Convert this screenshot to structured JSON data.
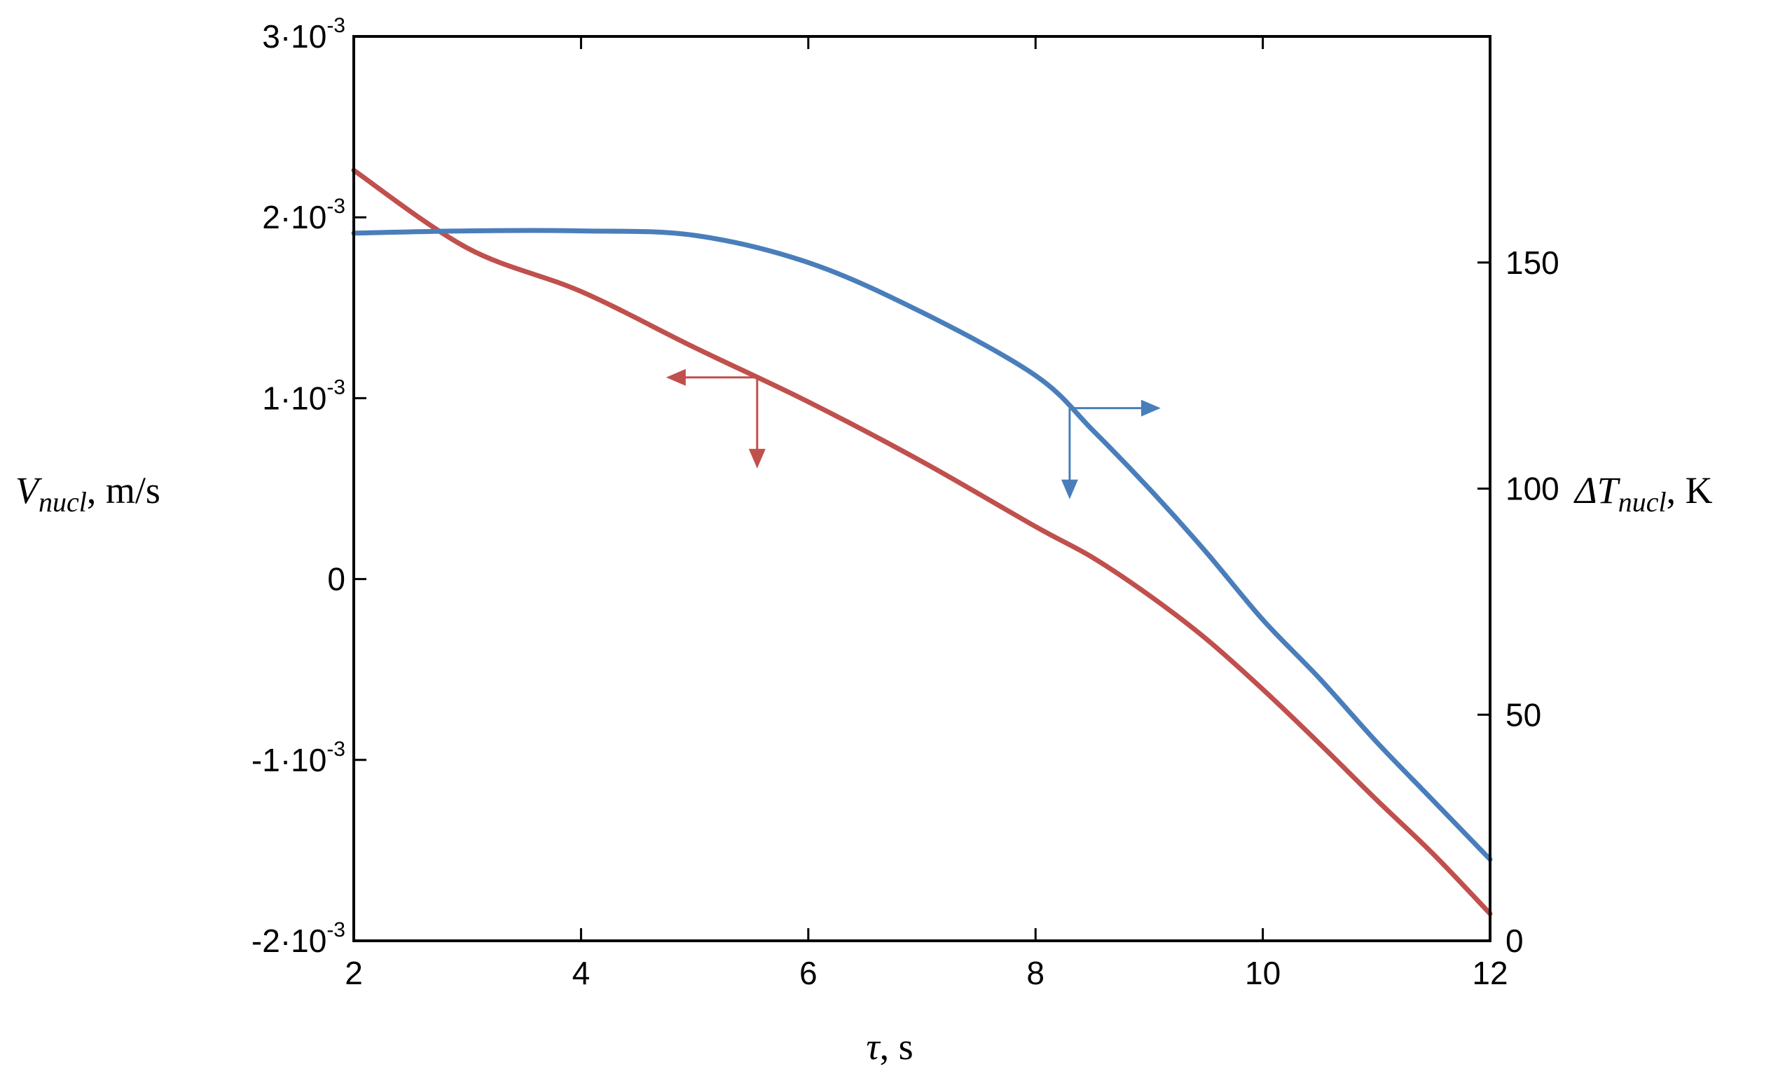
{
  "chart_data": {
    "type": "line",
    "xlabel": {
      "symbol": "τ",
      "unit": ", s"
    },
    "ylabel_left": {
      "symbol": "V",
      "subscript": "nucl",
      "unit": ", m/s"
    },
    "ylabel_right": {
      "symbol": "ΔT",
      "subscript": "nucl",
      "unit": ", K"
    },
    "xlim": [
      2,
      12
    ],
    "ylim_left": [
      -0.002,
      0.003
    ],
    "ylim_right": [
      0,
      200
    ],
    "x_ticks": [
      {
        "value": 2,
        "label": "2"
      },
      {
        "value": 4,
        "label": "4"
      },
      {
        "value": 6,
        "label": "6"
      },
      {
        "value": 8,
        "label": "8"
      },
      {
        "value": 10,
        "label": "10"
      },
      {
        "value": 12,
        "label": "12"
      }
    ],
    "y_left_ticks": [
      {
        "value": 0.003,
        "mantissa": "3·10",
        "exp": "-3"
      },
      {
        "value": 0.002,
        "mantissa": "2·10",
        "exp": "-3"
      },
      {
        "value": 0.001,
        "mantissa": "1·10",
        "exp": "-3"
      },
      {
        "value": 0,
        "mantissa": "0",
        "exp": ""
      },
      {
        "value": -0.001,
        "mantissa": "-1·10",
        "exp": "-3"
      },
      {
        "value": -0.002,
        "mantissa": "-2·10",
        "exp": "-3"
      }
    ],
    "y_right_ticks": [
      {
        "value": 0,
        "label": "0"
      },
      {
        "value": 50,
        "label": "50"
      },
      {
        "value": 100,
        "label": "100"
      },
      {
        "value": 150,
        "label": "150"
      }
    ],
    "series": [
      {
        "axis": "left",
        "color": "#c0504d",
        "x": [
          2,
          3,
          4,
          5,
          6,
          7,
          8,
          8.5,
          9,
          9.5,
          10,
          10.5,
          11,
          11.5,
          12
        ],
        "y": [
          0.00226,
          0.00183,
          0.00159,
          0.00128,
          0.00098,
          0.00065,
          0.00029,
          0.00012,
          -9e-05,
          -0.00033,
          -0.00061,
          -0.00091,
          -0.00122,
          -0.00152,
          -0.00185
        ]
      },
      {
        "axis": "right",
        "color": "#4a7ebb",
        "x": [
          2,
          3,
          4,
          5,
          6,
          7,
          8,
          8.5,
          9,
          9.5,
          10,
          10.5,
          11,
          11.5,
          12
        ],
        "y": [
          156.5,
          157,
          157,
          156,
          150,
          139,
          125,
          113,
          100,
          86,
          71,
          58,
          44,
          31,
          18
        ]
      }
    ],
    "annotations": [
      {
        "series": 0,
        "at_x": 5.55,
        "label": "axis-pointer-left"
      },
      {
        "series": 1,
        "at_x": 8.3,
        "label": "axis-pointer-right"
      }
    ]
  }
}
